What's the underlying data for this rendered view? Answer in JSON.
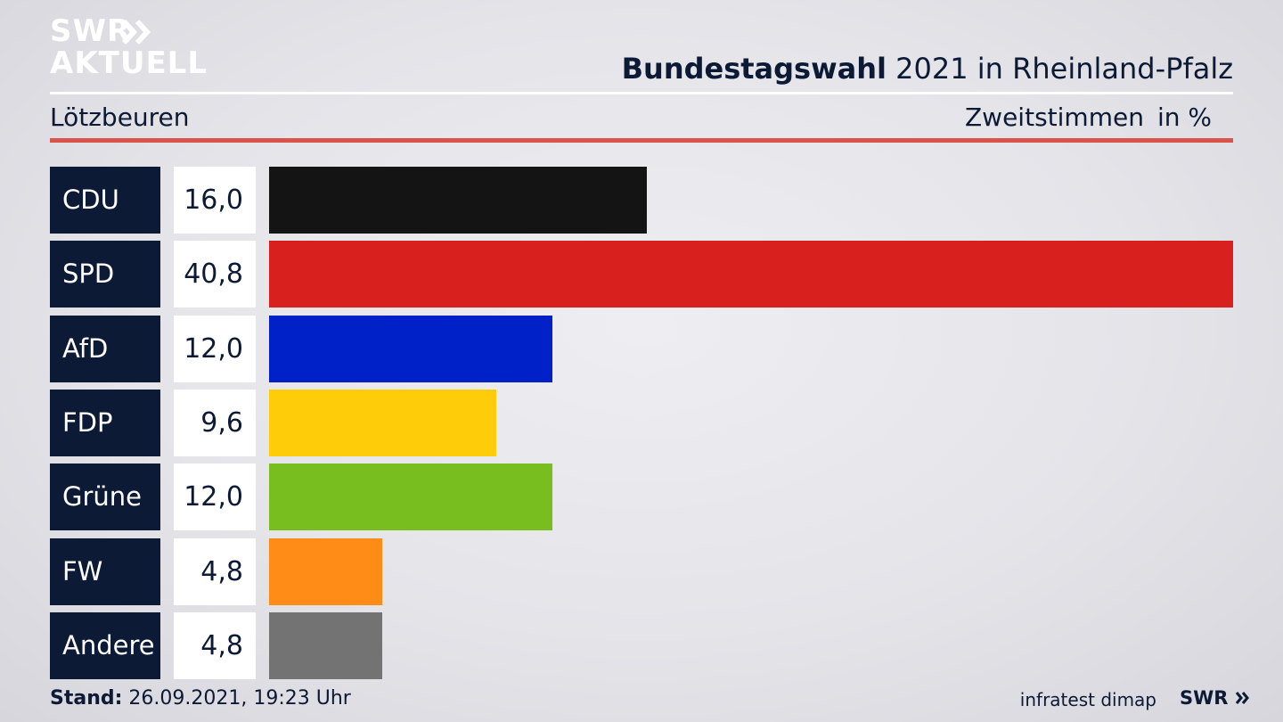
{
  "header": {
    "logo_line1": "SWR",
    "logo_line2": "AKTUELL",
    "title_bold": "Bundestagswahl",
    "title_rest": "2021 in Rheinland-Pfalz",
    "location": "Lötzbeuren",
    "vote_type": "Zweitstimmen",
    "unit": "in %"
  },
  "chart_data": {
    "type": "bar",
    "orientation": "horizontal",
    "categories": [
      "CDU",
      "SPD",
      "AfD",
      "FDP",
      "Grüne",
      "FW",
      "Andere"
    ],
    "values": [
      16.0,
      40.8,
      12.0,
      9.6,
      12.0,
      4.8,
      4.8
    ],
    "value_labels": [
      "16,0",
      "40,8",
      "12,0",
      "9,6",
      "12,0",
      "4,8",
      "4,8"
    ],
    "colors": [
      "#141414",
      "#d8201f",
      "#0021c8",
      "#ffcc0a",
      "#78be1e",
      "#ff8c17",
      "#737373"
    ],
    "title": "Bundestagswahl 2021 in Rheinland-Pfalz",
    "xlim": [
      0,
      40.8
    ]
  },
  "footer": {
    "stand_label": "Stand:",
    "stand_value": "26.09.2021, 19:23 Uhr",
    "source": "infratest dimap",
    "brand": "SWR"
  }
}
